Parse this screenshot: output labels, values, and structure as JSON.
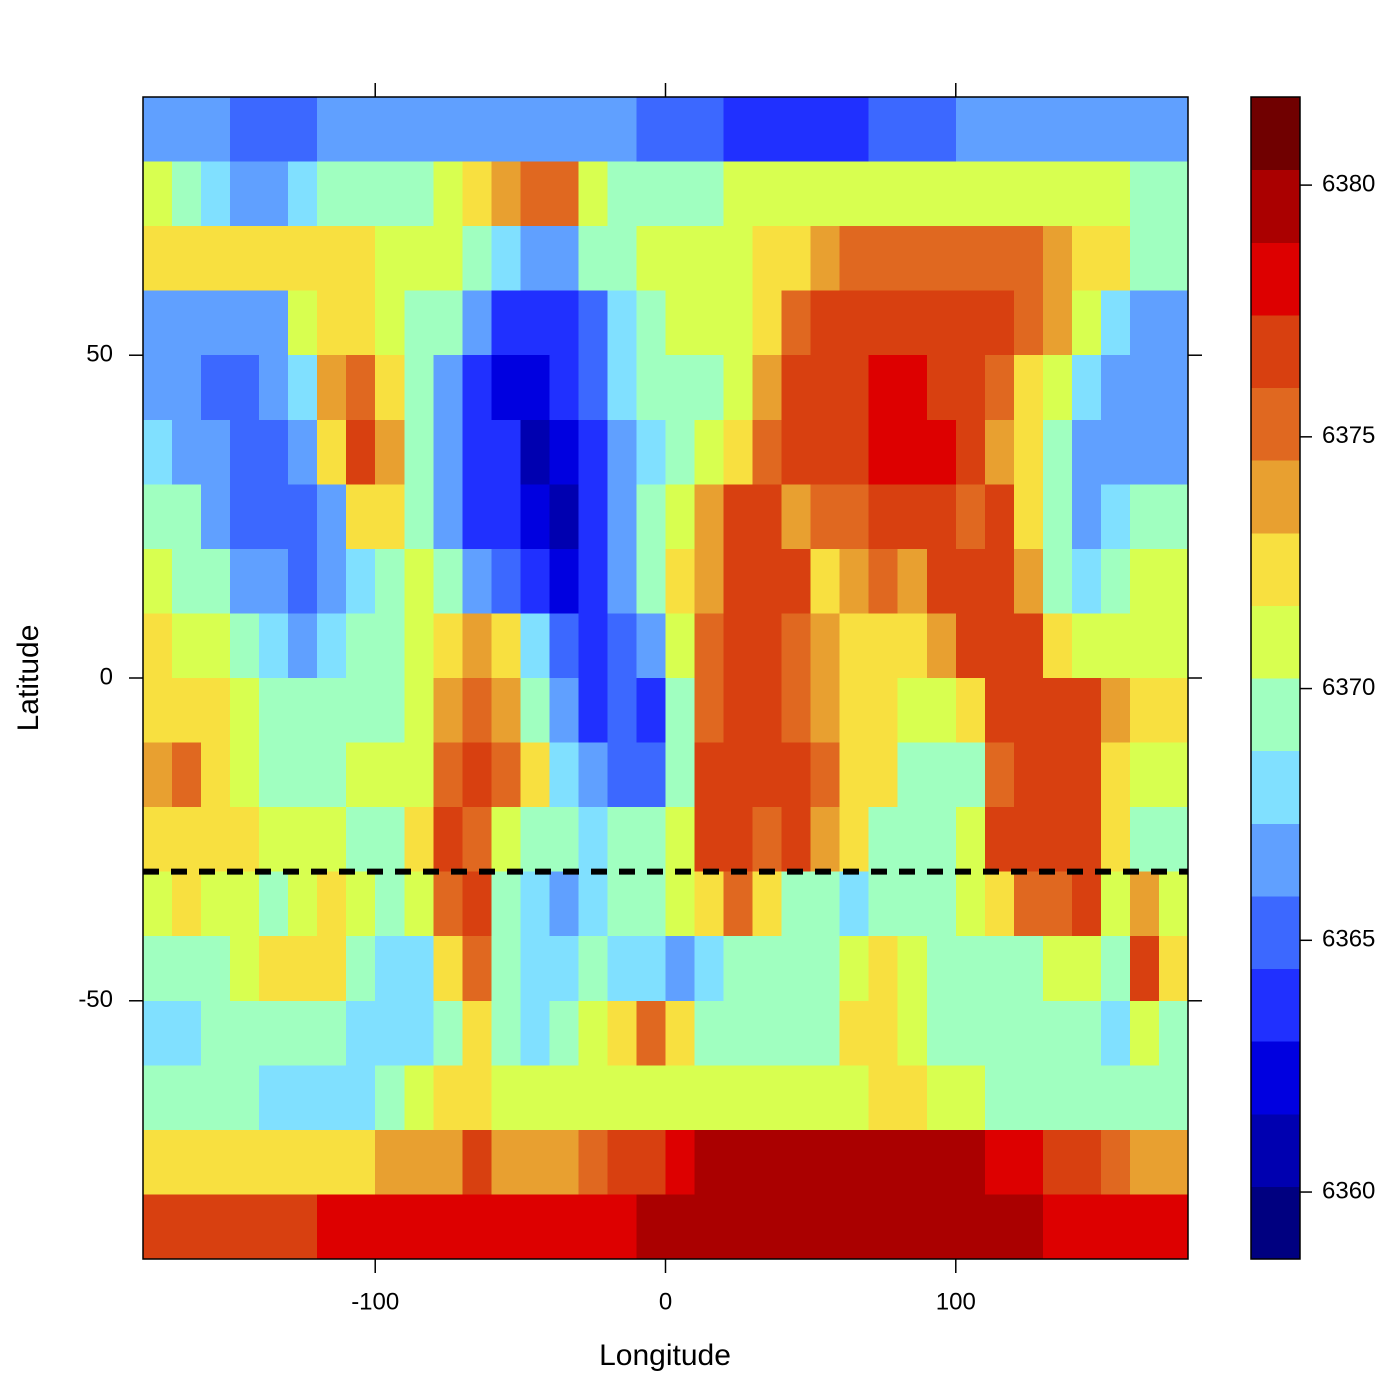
{
  "chart_data": {
    "type": "heatmap",
    "x_label": "Longitude",
    "y_label": "Latitude",
    "xlim": [
      -180,
      180
    ],
    "ylim": [
      -90,
      90
    ],
    "xticks": [
      -100,
      0,
      100
    ],
    "yticks": [
      -50,
      0,
      50
    ],
    "zlim": [
      6358.67,
      6381.75
    ],
    "zticks": [
      6360,
      6365,
      6370,
      6375,
      6380
    ],
    "colors": [
      "#000080",
      "#0000b0",
      "#0000e0",
      "#2030ff",
      "#3c68ff",
      "#60a0ff",
      "#80e0ff",
      "#a0ffc0",
      "#d8ff50",
      "#f8e040",
      "#e8a030",
      "#e06820",
      "#d84010",
      "#dd0000",
      "#aa0000",
      "#700000"
    ],
    "hline": {
      "value": -30,
      "color": "#000000"
    },
    "x": [
      -175,
      -165,
      -155,
      -145,
      -135,
      -125,
      -115,
      -105,
      -95,
      -85,
      -75,
      -65,
      -55,
      -45,
      -35,
      -25,
      -15,
      -5,
      5,
      15,
      25,
      35,
      45,
      55,
      65,
      75,
      85,
      95,
      105,
      115,
      125,
      135,
      145,
      155,
      165,
      175
    ],
    "y": [
      85,
      75,
      65,
      55,
      45,
      35,
      25,
      15,
      5,
      -5,
      -15,
      -25,
      -35,
      -45,
      -55,
      -65,
      -75,
      -85
    ],
    "z": [
      [
        6367,
        6366,
        6366,
        6365,
        6365,
        6365,
        6366,
        6367,
        6367,
        6366,
        6366,
        6366,
        6366,
        6366,
        6366,
        6366,
        6366,
        6365,
        6365,
        6365,
        6364,
        6364,
        6364,
        6364,
        6364,
        6365,
        6365,
        6365,
        6366,
        6366,
        6366,
        6367,
        6367,
        6367,
        6366,
        6366
      ],
      [
        6371,
        6370,
        6368,
        6366,
        6366,
        6368,
        6369,
        6370,
        6370,
        6370,
        6371,
        6372,
        6374,
        6375,
        6375,
        6371,
        6370,
        6369,
        6369,
        6370,
        6371,
        6371,
        6371,
        6371,
        6371,
        6371,
        6371,
        6371,
        6371,
        6371,
        6371,
        6371,
        6371,
        6371,
        6370,
        6369
      ],
      [
        6373,
        6373,
        6372,
        6372,
        6373,
        6373,
        6372,
        6372,
        6371,
        6371,
        6371,
        6370,
        6368,
        6366,
        6367,
        6369,
        6370,
        6371,
        6371,
        6371,
        6371,
        6372,
        6373,
        6374,
        6375,
        6375,
        6375,
        6375,
        6375,
        6375,
        6375,
        6374,
        6373,
        6372,
        6370,
        6369
      ],
      [
        6367,
        6366,
        6366,
        6366,
        6367,
        6371,
        6373,
        6372,
        6371,
        6370,
        6369,
        6367,
        6364,
        6363,
        6364,
        6365,
        6368,
        6370,
        6371,
        6371,
        6371,
        6373,
        6375,
        6376,
        6376,
        6376,
        6377,
        6377,
        6377,
        6376,
        6375,
        6374,
        6371,
        6368,
        6366,
        6366
      ],
      [
        6366,
        6366,
        6365,
        6365,
        6366,
        6368,
        6374,
        6375,
        6372,
        6370,
        6366,
        6363,
        6362,
        6362,
        6363,
        6365,
        6368,
        6370,
        6370,
        6370,
        6371,
        6374,
        6376,
        6377,
        6377,
        6378,
        6378,
        6377,
        6376,
        6375,
        6373,
        6371,
        6368,
        6366,
        6366,
        6366
      ],
      [
        6368,
        6367,
        6366,
        6365,
        6365,
        6366,
        6372,
        6376,
        6374,
        6370,
        6367,
        6364,
        6363,
        6361,
        6362,
        6363,
        6366,
        6368,
        6369,
        6371,
        6373,
        6375,
        6377,
        6377,
        6377,
        6378,
        6378,
        6378,
        6376,
        6374,
        6372,
        6369,
        6367,
        6367,
        6367,
        6367
      ],
      [
        6370,
        6369,
        6367,
        6365,
        6365,
        6365,
        6367,
        6372,
        6373,
        6369,
        6366,
        6364,
        6363,
        6362,
        6361,
        6363,
        6366,
        6369,
        6371,
        6374,
        6376,
        6376,
        6374,
        6375,
        6375,
        6376,
        6377,
        6376,
        6375,
        6376,
        6372,
        6369,
        6367,
        6368,
        6369,
        6370
      ],
      [
        6371,
        6370,
        6369,
        6367,
        6366,
        6365,
        6366,
        6368,
        6370,
        6371,
        6370,
        6367,
        6365,
        6363,
        6362,
        6364,
        6367,
        6370,
        6372,
        6374,
        6376,
        6377,
        6376,
        6373,
        6374,
        6375,
        6374,
        6376,
        6377,
        6377,
        6374,
        6370,
        6368,
        6370,
        6371,
        6371
      ],
      [
        6372,
        6371,
        6371,
        6370,
        6368,
        6367,
        6368,
        6369,
        6370,
        6371,
        6373,
        6374,
        6373,
        6368,
        6365,
        6364,
        6365,
        6366,
        6371,
        6375,
        6376,
        6377,
        6375,
        6374,
        6372,
        6373,
        6372,
        6374,
        6376,
        6377,
        6376,
        6373,
        6371,
        6371,
        6371,
        6371
      ],
      [
        6373,
        6372,
        6372,
        6371,
        6370,
        6369,
        6369,
        6369,
        6370,
        6371,
        6374,
        6375,
        6374,
        6370,
        6366,
        6364,
        6365,
        6364,
        6369,
        6375,
        6376,
        6376,
        6375,
        6374,
        6372,
        6373,
        6371,
        6371,
        6373,
        6376,
        6377,
        6377,
        6376,
        6374,
        6372,
        6372
      ],
      [
        6374,
        6375,
        6373,
        6371,
        6370,
        6370,
        6370,
        6371,
        6371,
        6371,
        6375,
        6376,
        6375,
        6372,
        6368,
        6366,
        6365,
        6365,
        6370,
        6376,
        6377,
        6376,
        6376,
        6375,
        6373,
        6372,
        6370,
        6369,
        6370,
        6375,
        6377,
        6377,
        6377,
        6372,
        6371,
        6371
      ],
      [
        6373,
        6372,
        6372,
        6372,
        6371,
        6371,
        6371,
        6370,
        6370,
        6372,
        6377,
        6375,
        6371,
        6369,
        6369,
        6368,
        6369,
        6370,
        6371,
        6376,
        6377,
        6375,
        6377,
        6374,
        6372,
        6370,
        6369,
        6369,
        6371,
        6376,
        6377,
        6377,
        6376,
        6372,
        6370,
        6369
      ],
      [
        6371,
        6372,
        6371,
        6371,
        6370,
        6371,
        6372,
        6371,
        6369,
        6371,
        6375,
        6376,
        6370,
        6368,
        6367,
        6368,
        6369,
        6370,
        6371,
        6373,
        6375,
        6372,
        6370,
        6369,
        6368,
        6369,
        6369,
        6370,
        6371,
        6372,
        6375,
        6375,
        6376,
        6371,
        6374,
        6371
      ],
      [
        6369,
        6370,
        6370,
        6371,
        6372,
        6373,
        6372,
        6370,
        6368,
        6368,
        6373,
        6375,
        6369,
        6368,
        6368,
        6369,
        6368,
        6368,
        6367,
        6368,
        6369,
        6369,
        6369,
        6370,
        6371,
        6372,
        6371,
        6370,
        6370,
        6369,
        6370,
        6371,
        6371,
        6369,
        6377,
        6372
      ],
      [
        6368,
        6368,
        6369,
        6369,
        6370,
        6370,
        6369,
        6368,
        6368,
        6368,
        6370,
        6372,
        6369,
        6368,
        6370,
        6371,
        6372,
        6375,
        6372,
        6370,
        6370,
        6370,
        6370,
        6370,
        6372,
        6373,
        6371,
        6370,
        6370,
        6370,
        6369,
        6369,
        6369,
        6368,
        6371,
        6370
      ],
      [
        6370,
        6370,
        6369,
        6369,
        6368,
        6368,
        6368,
        6368,
        6370,
        6371,
        6372,
        6372,
        6371,
        6371,
        6371,
        6371,
        6371,
        6371,
        6371,
        6371,
        6371,
        6371,
        6371,
        6371,
        6371,
        6373,
        6372,
        6371,
        6371,
        6370,
        6370,
        6370,
        6370,
        6370,
        6370,
        6370
      ],
      [
        6373,
        6373,
        6372,
        6372,
        6372,
        6373,
        6373,
        6373,
        6374,
        6374,
        6374,
        6376,
        6374,
        6374,
        6374,
        6375,
        6376,
        6377,
        6378,
        6379,
        6380,
        6380,
        6379,
        6379,
        6380,
        6380,
        6380,
        6380,
        6379,
        6378,
        6378,
        6377,
        6376,
        6375,
        6374,
        6374
      ],
      [
        6377,
        6377,
        6377,
        6377,
        6377,
        6377,
        6378,
        6378,
        6378,
        6378,
        6378,
        6378,
        6378,
        6378,
        6378,
        6378,
        6378,
        6379,
        6379,
        6379,
        6380,
        6380,
        6380,
        6380,
        6380,
        6380,
        6380,
        6380,
        6379,
        6379,
        6379,
        6378,
        6378,
        6378,
        6378,
        6378
      ]
    ]
  }
}
